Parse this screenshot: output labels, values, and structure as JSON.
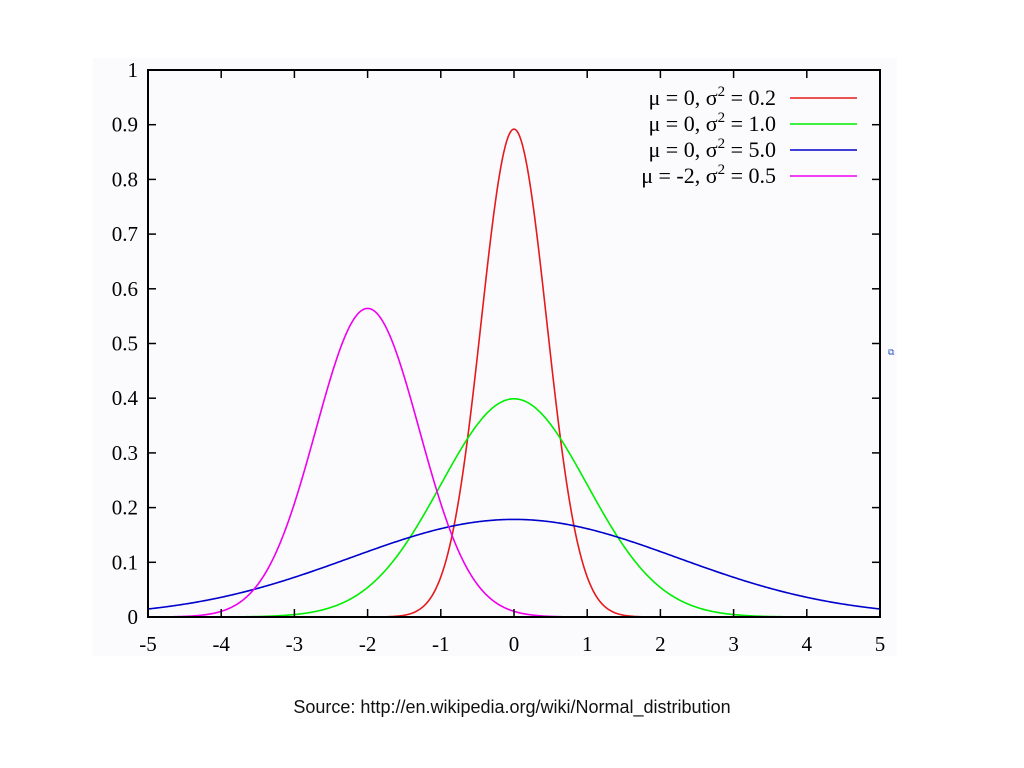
{
  "chart_data": {
    "type": "line",
    "title": "",
    "xlabel": "",
    "ylabel": "",
    "xlim": [
      -5,
      5
    ],
    "ylim": [
      0,
      1
    ],
    "grid": false,
    "legend_position": "top-right",
    "x_ticks": [
      "-5",
      "-4",
      "-3",
      "-2",
      "-1",
      "0",
      "1",
      "2",
      "3",
      "4",
      "5"
    ],
    "y_ticks": [
      "0",
      "0.1",
      "0.2",
      "0.3",
      "0.4",
      "0.5",
      "0.6",
      "0.7",
      "0.8",
      "0.9",
      "1"
    ],
    "series": [
      {
        "name": "μ =  0, σ² = 0.2",
        "label_main": "μ =  0, σ",
        "label_sup": "2",
        "label_tail": " = 0.2",
        "mu": 0,
        "variance": 0.2,
        "color": "#e41a1c",
        "peak": 0.89
      },
      {
        "name": "μ =  0, σ² = 1.0",
        "label_main": "μ =  0, σ",
        "label_sup": "2",
        "label_tail": " = 1.0",
        "mu": 0,
        "variance": 1.0,
        "color": "#00ee00",
        "peak": 0.4
      },
      {
        "name": "μ =  0, σ² = 5.0",
        "label_main": "μ =  0, σ",
        "label_sup": "2",
        "label_tail": " = 5.0",
        "mu": 0,
        "variance": 5.0,
        "color": "#0000cc",
        "peak": 0.18
      },
      {
        "name": "μ = -2, σ² = 0.5",
        "label_main": "μ = -2, σ",
        "label_sup": "2",
        "label_tail": " = 0.5",
        "mu": -2,
        "variance": 0.5,
        "color": "#ee00ee",
        "peak": 0.56
      }
    ]
  },
  "caption": "Source: http://en.wikipedia.org/wiki/Normal_distribution"
}
